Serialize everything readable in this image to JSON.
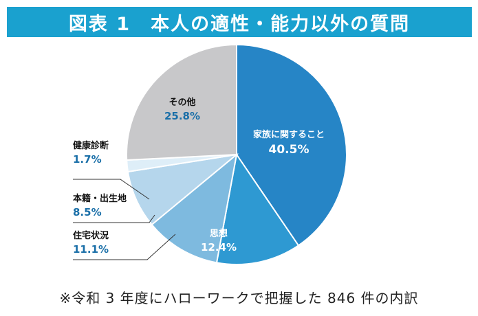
{
  "title": "図表 1　本人の適性・能力以外の質問",
  "footnote": "※令和 3 年度にハローワークで把握した 846 件の内訳",
  "chart_data": {
    "type": "pie",
    "title": "図表 1　本人の適性・能力以外の質問",
    "unit": "%",
    "start": "12 o'clock, clockwise",
    "slices": [
      {
        "label": "家族に関すること",
        "value": 40.5,
        "display": "40.5%",
        "color": "#2685c6",
        "label_color": "#ffffff"
      },
      {
        "label": "思想",
        "value": 12.4,
        "display": "12.4%",
        "color": "#2e99d2",
        "label_color": "#ffffff"
      },
      {
        "label": "住宅状況",
        "value": 11.1,
        "display": "11.1%",
        "color": "#7ebadf",
        "label_color": "#1a6fa8"
      },
      {
        "label": "本籍・出生地",
        "value": 8.5,
        "display": "8.5%",
        "color": "#b5d6ec",
        "label_color": "#1a6fa8"
      },
      {
        "label": "健康診断",
        "value": 1.7,
        "display": "1.7%",
        "color": "#deeef8",
        "label_color": "#1a6fa8"
      },
      {
        "label": "その他",
        "value": 25.8,
        "display": "25.8%",
        "color": "#c8c8ca",
        "label_color": "#1a6fa8"
      }
    ]
  }
}
